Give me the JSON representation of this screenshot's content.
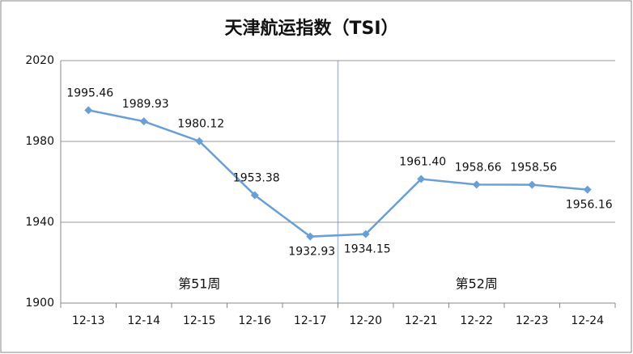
{
  "chart_data": {
    "type": "line",
    "title": "天津航运指数（TSI）",
    "categories": [
      "12-13",
      "12-14",
      "12-15",
      "12-16",
      "12-17",
      "12-20",
      "12-21",
      "12-22",
      "12-23",
      "12-24"
    ],
    "series": [
      {
        "name": "TSI",
        "color": "#6a9fd6",
        "values": [
          1995.46,
          1989.93,
          1980.12,
          1953.38,
          1932.93,
          1934.15,
          1961.4,
          1958.66,
          1958.56,
          1956.16
        ],
        "value_labels": [
          "1995.46",
          "1989.93",
          "1980.12",
          "1953.38",
          "1932.93",
          "1934.15",
          "1961.40",
          "1958.66",
          "1958.56",
          "1956.16"
        ]
      }
    ],
    "ylim": [
      1900,
      2020
    ],
    "yticks": [
      1900,
      1940,
      1980,
      2020
    ],
    "grid": true,
    "annotations": [
      "第51周",
      "第52周"
    ]
  }
}
